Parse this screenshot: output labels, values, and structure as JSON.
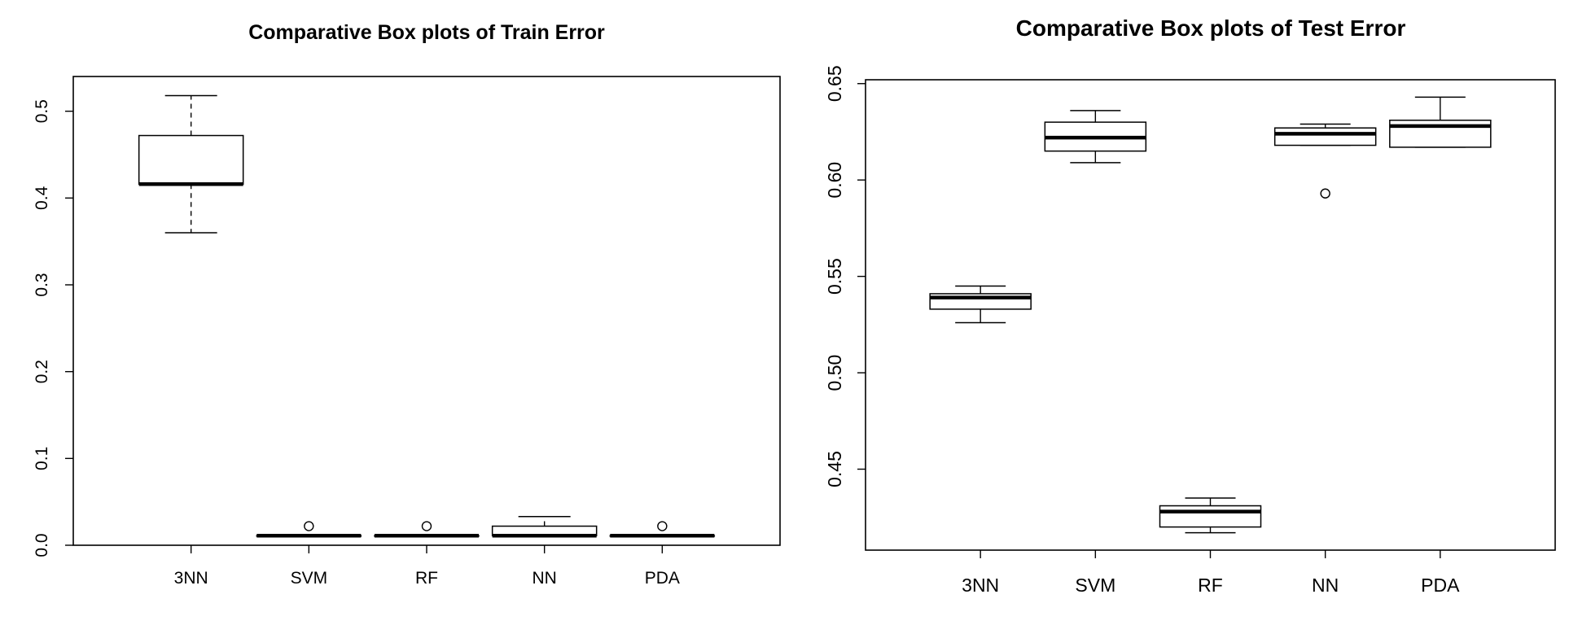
{
  "chart_data": [
    {
      "type": "boxplot",
      "title": "Comparative Box plots of Train Error",
      "xlabel": "",
      "ylabel": "",
      "categories": [
        "3NN",
        "SVM",
        "RF",
        "NN",
        "PDA"
      ],
      "ylim": [
        0.0,
        0.54
      ],
      "yticks": [
        "0.0",
        "0.1",
        "0.2",
        "0.3",
        "0.4",
        "0.5"
      ],
      "ytick_values": [
        0.0,
        0.1,
        0.2,
        0.3,
        0.4,
        0.5
      ],
      "whisker_style": "dashed",
      "boxes": [
        {
          "name": "3NN",
          "min": 0.36,
          "q1": 0.416,
          "median": 0.416,
          "q3": 0.472,
          "max": 0.518,
          "outliers": []
        },
        {
          "name": "SVM",
          "min": 0.011,
          "q1": 0.011,
          "median": 0.011,
          "q3": 0.011,
          "max": 0.011,
          "outliers": [
            0.022
          ]
        },
        {
          "name": "RF",
          "min": 0.011,
          "q1": 0.011,
          "median": 0.011,
          "q3": 0.011,
          "max": 0.011,
          "outliers": [
            0.022
          ]
        },
        {
          "name": "NN",
          "min": 0.011,
          "q1": 0.011,
          "median": 0.011,
          "q3": 0.022,
          "max": 0.033,
          "outliers": []
        },
        {
          "name": "PDA",
          "min": 0.011,
          "q1": 0.011,
          "median": 0.011,
          "q3": 0.011,
          "max": 0.011,
          "outliers": [
            0.022
          ]
        }
      ]
    },
    {
      "type": "boxplot",
      "title": "Comparative Box plots of Test Error",
      "xlabel": "",
      "ylabel": "",
      "categories": [
        "3NN",
        "SVM",
        "RF",
        "NN",
        "PDA"
      ],
      "ylim": [
        0.408,
        0.652
      ],
      "yticks": [
        "0.45",
        "0.50",
        "0.55",
        "0.60",
        "0.65"
      ],
      "ytick_values": [
        0.45,
        0.5,
        0.55,
        0.6,
        0.65
      ],
      "whisker_style": "solid",
      "boxes": [
        {
          "name": "3NN",
          "min": 0.526,
          "q1": 0.533,
          "median": 0.539,
          "q3": 0.541,
          "max": 0.545,
          "outliers": []
        },
        {
          "name": "SVM",
          "min": 0.609,
          "q1": 0.615,
          "median": 0.622,
          "q3": 0.63,
          "max": 0.636,
          "outliers": []
        },
        {
          "name": "RF",
          "min": 0.417,
          "q1": 0.42,
          "median": 0.428,
          "q3": 0.431,
          "max": 0.435,
          "outliers": []
        },
        {
          "name": "NN",
          "min": 0.618,
          "q1": 0.618,
          "median": 0.624,
          "q3": 0.627,
          "max": 0.629,
          "outliers": [
            0.593
          ]
        },
        {
          "name": "PDA",
          "min": 0.617,
          "q1": 0.617,
          "median": 0.628,
          "q3": 0.631,
          "max": 0.643,
          "outliers": []
        }
      ]
    }
  ]
}
